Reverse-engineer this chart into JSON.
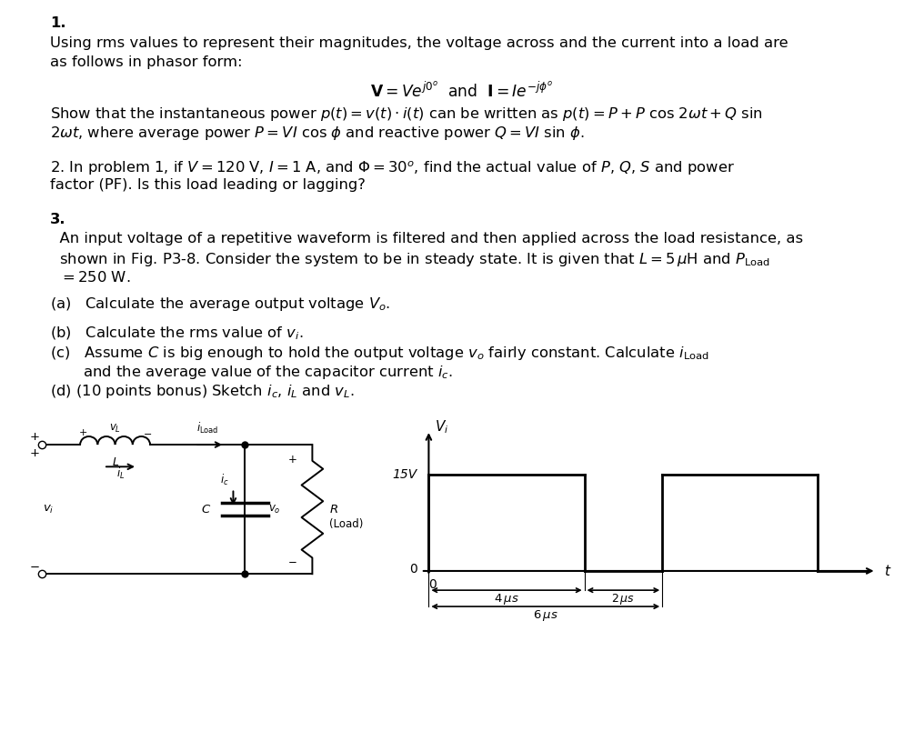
{
  "bg_color": "#ffffff",
  "text_color": "#000000",
  "fig_width": 10.16,
  "fig_height": 8.15,
  "p1_bold": "1.",
  "p1_l1": "Using rms values to represent their magnitudes, the voltage across and the current into a load are",
  "p1_l2": "as follows in phasor form:",
  "p1_eq": "$\\mathbf{V} = Ve^{j0^o}$  and  $\\mathbf{I} = Ie^{-j\\phi^o}$",
  "p1_l3": "Show that the instantaneous power $p(t) = v(t)\\cdot i(t)$ can be written as $p(t) = P + P$ cos $2\\omega t + Q$ sin",
  "p1_l4": "$2\\omega t$, where average power $P = VI$ cos $\\phi$ and reactive power $Q = VI$ sin $\\phi$.",
  "p2_l1": "2. In problem 1, if $V = 120$ V, $I = 1$ A, and $\\Phi = 30^o$, find the actual value of $P$, $Q$, $S$ and power",
  "p2_l2": "factor (PF). Is this load leading or lagging?",
  "p3_bold": "3.",
  "p3_l1": "  An input voltage of a repetitive waveform is filtered and then applied across the load resistance, as",
  "p3_l2": "  shown in Fig. P3-8. Consider the system to be in steady state. It is given that $L = 5\\,\\mu$H and $P_{\\mathrm{Load}}$",
  "p3_l3": "  $= 250$ W.",
  "pa": "(a)   Calculate the average output voltage $V_o$.",
  "pb": "(b)   Calculate the rms value of $v_i$.",
  "pc1": "(c)   Assume $C$ is big enough to hold the output voltage $v_o$ fairly constant. Calculate $i_{\\mathrm{Load}}$",
  "pc2": "       and the average value of the capacitor current $i_c$.",
  "pd": "(d) (10 points bonus) Sketch $i_c$, $i_L$ and $v_L$."
}
